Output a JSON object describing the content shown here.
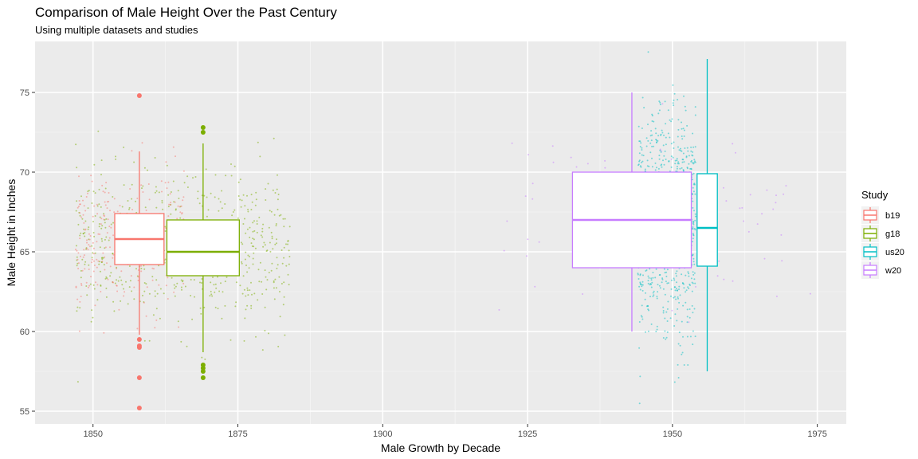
{
  "chart_data": {
    "type": "boxplot",
    "title": "Comparison of Male Height Over the Past Century",
    "subtitle": "Using multiple datasets and studies",
    "xlabel": "Male Growth by Decade",
    "ylabel": "Male Height in Inches",
    "xlim": [
      1840,
      1980
    ],
    "ylim": [
      54.2,
      78.2
    ],
    "x_ticks": [
      1850,
      1875,
      1900,
      1925,
      1950,
      1975
    ],
    "y_ticks": [
      55,
      60,
      65,
      70,
      75
    ],
    "grid": true,
    "legend": {
      "title": "Study",
      "position": "right",
      "entries": [
        "b19",
        "g18",
        "us20",
        "w20"
      ]
    },
    "series": [
      {
        "name": "b19",
        "color": "#F8766D",
        "box": {
          "x": 1858,
          "width": 8.5,
          "q1": 64.2,
          "median": 65.8,
          "q3": 67.4,
          "whisker_low": 59.8,
          "whisker_high": 71.3
        },
        "outliers": [
          74.8,
          59.5,
          59.1,
          59.0,
          57.1,
          55.2
        ],
        "jitter": {
          "x_min": 1847,
          "x_max": 1866,
          "y_mean": 65.6,
          "y_sd": 2.3,
          "count": 260
        }
      },
      {
        "name": "g18",
        "color": "#7CAE00",
        "box": {
          "x": 1869,
          "width": 12.5,
          "q1": 63.5,
          "median": 65.0,
          "q3": 67.0,
          "whisker_low": 58.7,
          "whisker_high": 71.8
        },
        "outliers": [
          72.8,
          72.5,
          57.9,
          57.7,
          57.5,
          57.1
        ],
        "jitter": {
          "x_min": 1847,
          "x_max": 1884,
          "y_mean": 65.2,
          "y_sd": 2.4,
          "count": 620
        }
      },
      {
        "name": "us20",
        "color": "#00BFC4",
        "box": {
          "x": 1956,
          "width": 3.5,
          "q1": 64.1,
          "median": 66.5,
          "q3": 69.9,
          "whisker_low": 57.5,
          "whisker_high": 77.1
        },
        "outliers": [],
        "jitter": {
          "x_min": 1944,
          "x_max": 1954,
          "y_mean": 66.8,
          "y_sd": 3.4,
          "count": 900
        }
      },
      {
        "name": "w20",
        "color": "#C77CFF",
        "box": {
          "x": 1943,
          "width": 20.5,
          "q1": 64.0,
          "median": 67.0,
          "q3": 70.0,
          "whisker_low": 60.0,
          "whisker_high": 75.0
        },
        "outliers": [],
        "jitter": {
          "x_min": 1920,
          "x_max": 1975,
          "y_mean": 66.8,
          "y_sd": 3.0,
          "count": 70
        }
      }
    ]
  }
}
